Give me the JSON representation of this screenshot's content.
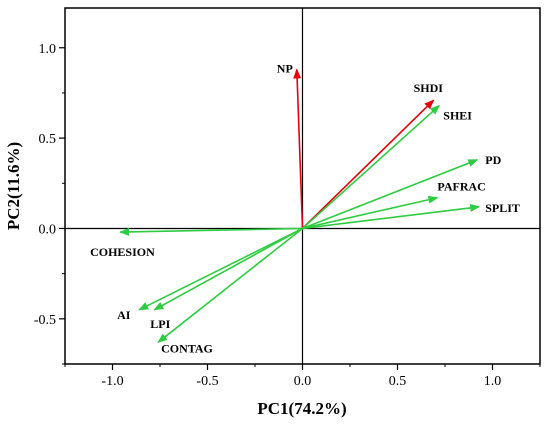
{
  "chart_data": {
    "type": "biplot",
    "xlabel": "PC1(74.2%)",
    "ylabel": "PC2(11.6%)",
    "xlim": [
      -1.25,
      1.25
    ],
    "ylim": [
      -0.75,
      1.22
    ],
    "x_ticks": [
      -1.0,
      -0.5,
      0.0,
      0.5,
      1.0
    ],
    "x_tick_labels": [
      "-1.0",
      "-0.5",
      "0.0",
      "0.5",
      "1.0"
    ],
    "y_ticks": [
      -0.5,
      0.0,
      0.5,
      1.0
    ],
    "y_tick_labels": [
      "-0.5",
      "0.0",
      "0.5",
      "1.0"
    ],
    "reference_lines": {
      "x": 0.0,
      "y": 0.0
    },
    "arrow_head": "filled",
    "grid": false,
    "vectors": [
      {
        "name": "NP",
        "x": -0.03,
        "y": 0.88,
        "color": "#e8000b"
      },
      {
        "name": "SHDI",
        "x": 0.69,
        "y": 0.71,
        "color": "#e8000b"
      },
      {
        "name": "SHEI",
        "x": 0.72,
        "y": 0.68,
        "color": "#2ecc40"
      },
      {
        "name": "PD",
        "x": 0.92,
        "y": 0.38,
        "color": "#2ecc40"
      },
      {
        "name": "PAFRAC",
        "x": 0.71,
        "y": 0.17,
        "color": "#2ecc40"
      },
      {
        "name": "SPLIT",
        "x": 0.93,
        "y": 0.12,
        "color": "#2ecc40"
      },
      {
        "name": "COHESION",
        "x": -0.96,
        "y": -0.02,
        "color": "#2ecc40"
      },
      {
        "name": "AI",
        "x": -0.86,
        "y": -0.45,
        "color": "#2ecc40"
      },
      {
        "name": "LPI",
        "x": -0.78,
        "y": -0.45,
        "color": "#2ecc40"
      },
      {
        "name": "CONTAG",
        "x": -0.76,
        "y": -0.63,
        "color": "#2ecc40"
      }
    ]
  }
}
